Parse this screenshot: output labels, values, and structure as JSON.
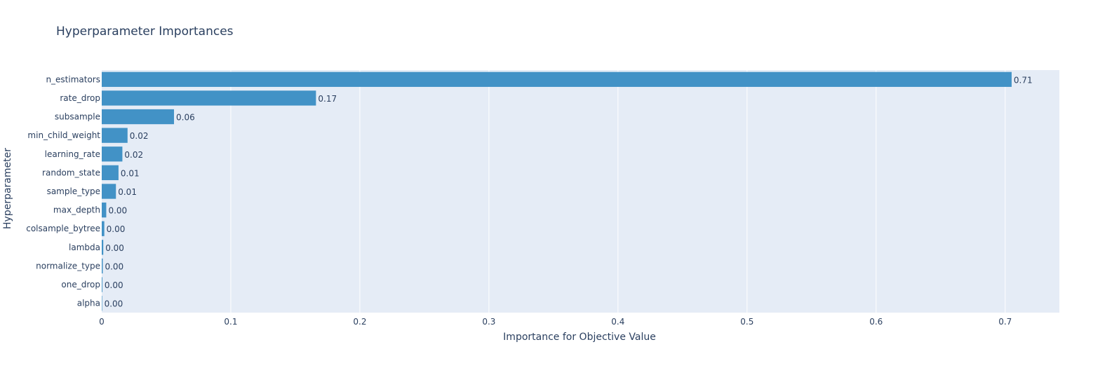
{
  "chart_data": {
    "type": "bar",
    "orientation": "horizontal",
    "title": "Hyperparameter Importances",
    "xlabel": "Importance for Objective Value",
    "ylabel": "Hyperparameter",
    "xlim": [
      0,
      0.742
    ],
    "xticks": [
      0,
      0.1,
      0.2,
      0.3,
      0.4,
      0.5,
      0.6,
      0.7
    ],
    "xtick_labels": [
      "0",
      "0.1",
      "0.2",
      "0.3",
      "0.4",
      "0.5",
      "0.6",
      "0.7"
    ],
    "grid": true,
    "categories": [
      "n_estimators",
      "rate_drop",
      "subsample",
      "min_child_weight",
      "learning_rate",
      "random_state",
      "sample_type",
      "max_depth",
      "colsample_bytree",
      "lambda",
      "normalize_type",
      "one_drop",
      "alpha"
    ],
    "values": [
      0.705,
      0.166,
      0.056,
      0.02,
      0.016,
      0.013,
      0.011,
      0.0035,
      0.002,
      0.0012,
      0.0008,
      0.0005,
      0.0002
    ],
    "data_labels": [
      "0.71",
      "0.17",
      "0.06",
      "0.02",
      "0.02",
      "0.01",
      "0.01",
      "0.00",
      "0.00",
      "0.00",
      "0.00",
      "0.00",
      "0.00"
    ],
    "colors": {
      "bar": "#4292c6",
      "plot_bg": "#e5ecf6",
      "grid": "#ffffff",
      "text": "#2a3f5f"
    }
  }
}
